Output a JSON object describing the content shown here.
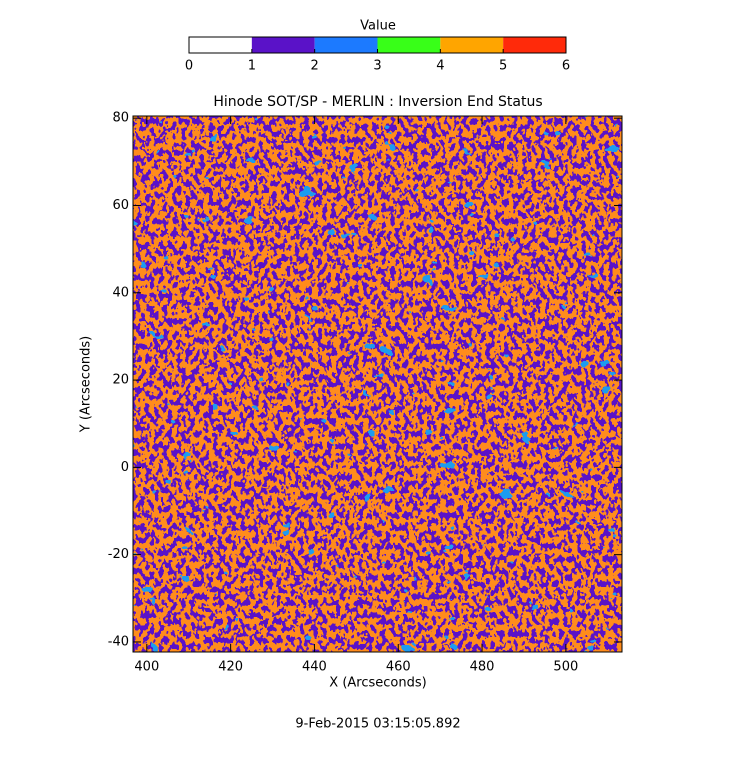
{
  "chart_data": {
    "type": "heatmap",
    "title": "Hinode SOT/SP - MERLIN : Inversion End Status",
    "xlabel": "X (Arcseconds)",
    "ylabel": "Y (Arcseconds)",
    "xlim": [
      396.7,
      513.4
    ],
    "ylim": [
      -42.3,
      80.5
    ],
    "xticks": [
      400,
      420,
      440,
      460,
      480,
      500
    ],
    "yticks": [
      -40,
      -20,
      0,
      20,
      40,
      60,
      80
    ],
    "colorbar": {
      "label": "Value",
      "lim": [
        0,
        6
      ],
      "ticks": [
        0,
        1,
        2,
        3,
        4,
        5,
        6
      ],
      "colors": [
        "#ffffff",
        "#5a12c8",
        "#1c7aff",
        "#38ff18",
        "#ffa500",
        "#ff2a0a"
      ]
    },
    "footer": "9-Feb-2015 03:15:05.892"
  }
}
